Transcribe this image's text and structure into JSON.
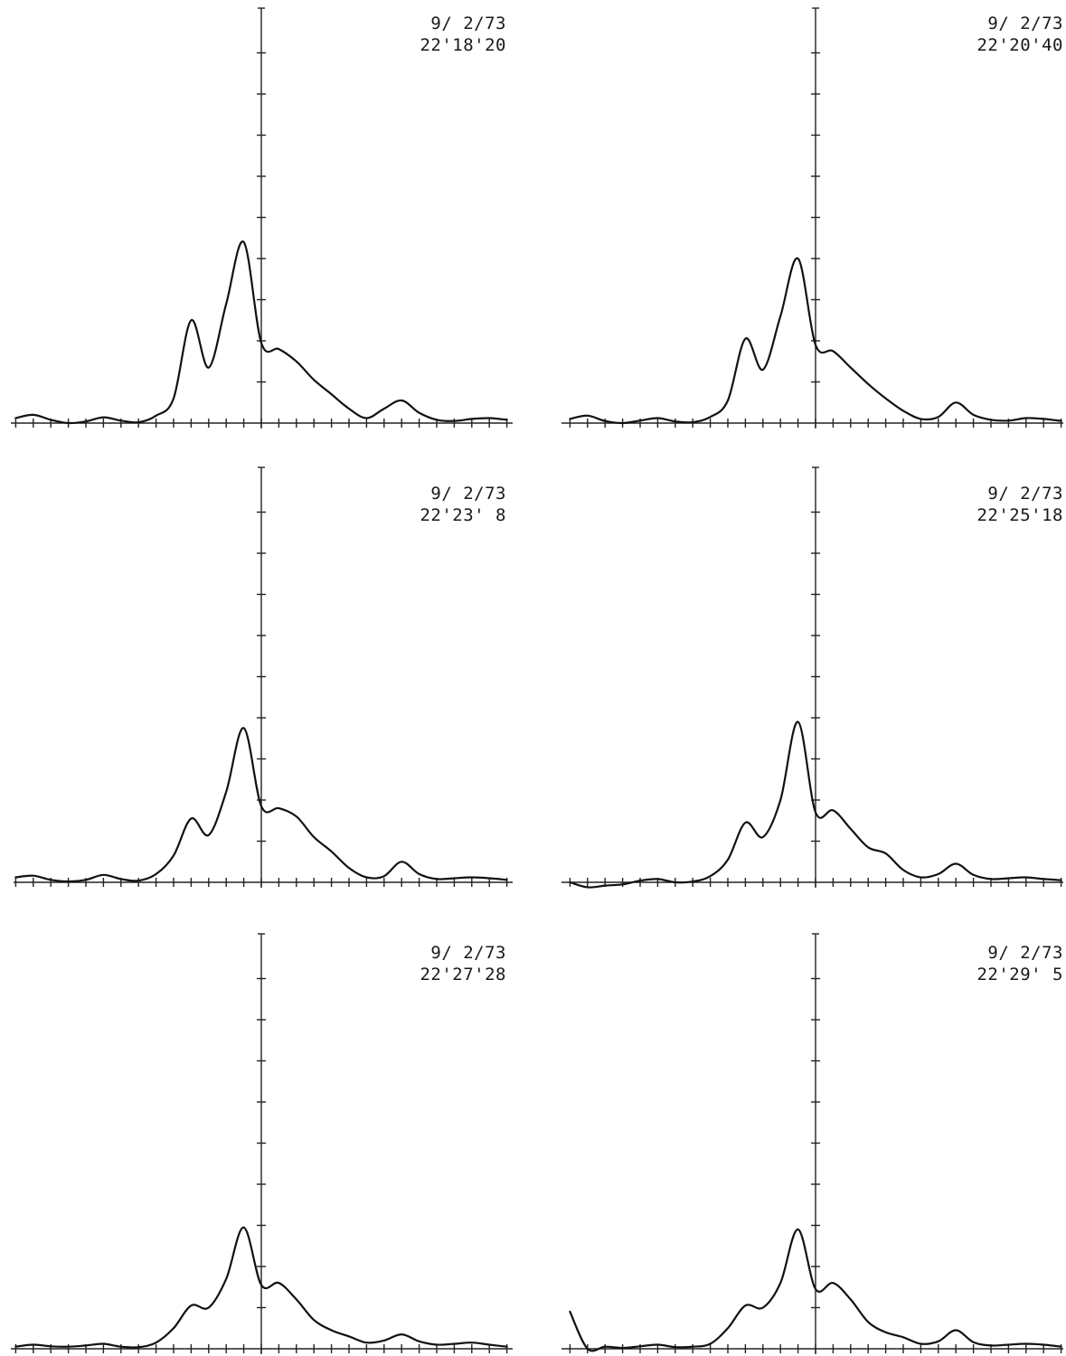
{
  "chart_data": [
    {
      "type": "line",
      "date": "9/ 2/73",
      "time": "22'18'20",
      "x": [
        -14,
        -13,
        -12,
        -11,
        -10,
        -9,
        -8,
        -7,
        -6,
        -5,
        -4,
        -3,
        -2,
        -1,
        0,
        1,
        2,
        3,
        4,
        5,
        6,
        7,
        8,
        9,
        10,
        11,
        12,
        13,
        14
      ],
      "y": [
        0.12,
        0.2,
        0.08,
        0.0,
        0.04,
        0.14,
        0.06,
        0.02,
        0.18,
        0.6,
        2.5,
        1.35,
        2.9,
        4.4,
        1.95,
        1.8,
        1.5,
        1.05,
        0.7,
        0.35,
        0.12,
        0.35,
        0.55,
        0.25,
        0.08,
        0.05,
        0.1,
        0.12,
        0.08
      ]
    },
    {
      "type": "line",
      "date": "9/ 2/73",
      "time": "22'20'40",
      "x": [
        -14,
        -13,
        -12,
        -11,
        -10,
        -9,
        -8,
        -7,
        -6,
        -5,
        -4,
        -3,
        -2,
        -1,
        0,
        1,
        2,
        3,
        4,
        5,
        6,
        7,
        8,
        9,
        10,
        11,
        12,
        13,
        14
      ],
      "y": [
        0.1,
        0.18,
        0.05,
        0.0,
        0.06,
        0.12,
        0.04,
        0.02,
        0.15,
        0.55,
        2.05,
        1.3,
        2.6,
        4.0,
        1.9,
        1.75,
        1.35,
        0.95,
        0.6,
        0.3,
        0.1,
        0.15,
        0.5,
        0.2,
        0.08,
        0.06,
        0.12,
        0.1,
        0.05
      ]
    },
    {
      "type": "line",
      "date": "9/ 2/73",
      "time": "22'23' 8",
      "x": [
        -14,
        -13,
        -12,
        -11,
        -10,
        -9,
        -8,
        -7,
        -6,
        -5,
        -4,
        -3,
        -2,
        -1,
        0,
        1,
        2,
        3,
        4,
        5,
        6,
        7,
        8,
        9,
        10,
        11,
        12,
        13,
        14
      ],
      "y": [
        0.12,
        0.16,
        0.06,
        0.02,
        0.06,
        0.18,
        0.08,
        0.04,
        0.2,
        0.65,
        1.55,
        1.15,
        2.2,
        3.75,
        1.85,
        1.8,
        1.6,
        1.1,
        0.75,
        0.35,
        0.12,
        0.15,
        0.5,
        0.2,
        0.08,
        0.1,
        0.12,
        0.1,
        0.06
      ]
    },
    {
      "type": "line",
      "date": "9/ 2/73",
      "time": "22'25'18",
      "x": [
        -14,
        -13,
        -12,
        -11,
        -10,
        -9,
        -8,
        -7,
        -6,
        -5,
        -4,
        -3,
        -2,
        -1,
        0,
        1,
        2,
        3,
        4,
        5,
        6,
        7,
        8,
        9,
        10,
        11,
        12,
        13,
        14
      ],
      "y": [
        0.0,
        -0.12,
        -0.08,
        -0.05,
        0.04,
        0.08,
        0.0,
        0.02,
        0.15,
        0.55,
        1.45,
        1.1,
        2.0,
        3.9,
        1.7,
        1.75,
        1.3,
        0.85,
        0.7,
        0.3,
        0.12,
        0.2,
        0.45,
        0.18,
        0.08,
        0.1,
        0.12,
        0.08,
        0.05
      ]
    },
    {
      "type": "line",
      "date": "9/ 2/73",
      "time": "22'27'28",
      "x": [
        -14,
        -13,
        -12,
        -11,
        -10,
        -9,
        -8,
        -7,
        -6,
        -5,
        -4,
        -3,
        -2,
        -1,
        0,
        1,
        2,
        3,
        4,
        5,
        6,
        7,
        8,
        9,
        10,
        11,
        12,
        13,
        14
      ],
      "y": [
        0.05,
        0.1,
        0.06,
        0.05,
        0.08,
        0.12,
        0.05,
        0.04,
        0.15,
        0.5,
        1.05,
        1.0,
        1.7,
        2.95,
        1.55,
        1.6,
        1.2,
        0.7,
        0.45,
        0.3,
        0.15,
        0.2,
        0.35,
        0.18,
        0.1,
        0.12,
        0.15,
        0.1,
        0.05
      ]
    },
    {
      "type": "line",
      "date": "9/ 2/73",
      "time": "22'29' 5",
      "x": [
        -14,
        -13,
        -12,
        -11,
        -10,
        -9,
        -8,
        -7,
        -6,
        -5,
        -4,
        -3,
        -2,
        -1,
        0,
        1,
        2,
        3,
        4,
        5,
        6,
        7,
        8,
        9,
        10,
        11,
        12,
        13,
        14
      ],
      "y": [
        0.9,
        0.0,
        0.05,
        0.02,
        0.06,
        0.1,
        0.04,
        0.05,
        0.12,
        0.5,
        1.05,
        1.0,
        1.6,
        2.9,
        1.45,
        1.6,
        1.2,
        0.65,
        0.4,
        0.28,
        0.12,
        0.18,
        0.45,
        0.16,
        0.08,
        0.1,
        0.12,
        0.1,
        0.05
      ]
    }
  ]
}
